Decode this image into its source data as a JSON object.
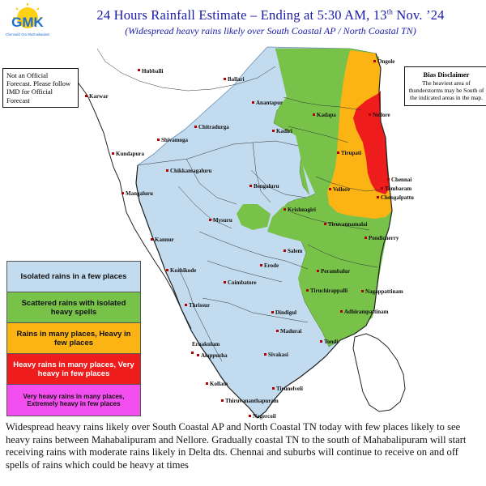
{
  "header": {
    "logo_text": "GMK",
    "logo_sub": "Chennaiiil Oru Mazhaikaalam",
    "title_main": "24 Hours Rainfall Estimate – Ending at 5:30 AM, 13",
    "title_sup": "th",
    "title_end": " Nov. ’24",
    "subtitle": "(Widespread heavy rains likely over South Coastal AP / North Coastal TN)"
  },
  "notes": {
    "left": "Not an Official Forecast. Please follow IMD for Official Forecast",
    "right_heading": "Bias Disclaimer",
    "right_body": "The heaviest area of thunderstorms may be South of the indicated areas in the map."
  },
  "legend": [
    {
      "label": "Isolated rains in a few places",
      "color": "#c3dbef"
    },
    {
      "label": "Scattered rains with isolated heavy spells",
      "color": "#78c24a"
    },
    {
      "label": "Rains in many places, Heavy in few places",
      "color": "#fbb414"
    },
    {
      "label": "Heavy rains in many places, Very heavy in few places",
      "color": "#ee1c1c"
    },
    {
      "label": "Very heavy rains in many places, Extremely heavy in few places",
      "color": "#f34ff0"
    }
  ],
  "cities": {
    "hubballi": "Hubballi",
    "ballari": "Ballari",
    "karwar": "Karwar",
    "anantapur": "Anantapur",
    "kadapa": "Kadapa",
    "ongole": "Ongole",
    "nellore": "Nellore",
    "chitradurga": "Chitradurga",
    "kadiri": "Kadiri",
    "shivamoga": "Shivamoga",
    "kundapura": "Kundapura",
    "tirupati": "Tirupati",
    "chikkamagaluru": "Chikkamagaluru",
    "chennai": "Chennai",
    "tambaram": "Tambaram",
    "mangaluru": "Mangaluru",
    "bengaluru": "Bengaluru",
    "vellore": "Vellore",
    "chengalpattu": "Chengalpattu",
    "krishnagiri": "Krishnagiri",
    "mysuru": "Mysuru",
    "tiruvannamalai": "Tiruvannamalai",
    "pondicherry": "Pondicherry",
    "kannur": "Kannur",
    "salem": "Salem",
    "kozhikode": "Kozhikode",
    "erode": "Erode",
    "perambalur": "Perambalur",
    "coimbatore": "Coimbatore",
    "tiruchirappalli": "Tiruchirappalli",
    "nagappattinam": "Nagappattinam",
    "thrissur": "Thrissur",
    "dindigul": "Dindigul",
    "adhirampattinam": "Adhirampattinam",
    "ernakulam": "Ernakulam",
    "madurai": "Madurai",
    "alappuzha": "Alappuzha",
    "sivakasi": "Sivakasi",
    "tondi": "Tondi",
    "kollam": "Kollam",
    "tirunelveli": "Tirunelveli",
    "thiruvananthapuram": "Thiruvananthapuram",
    "nagercoil": "Nagercoil"
  },
  "caption": "Widespread heavy rains likely over South Coastal AP and North Coastal TN today with few places likely to see heavy rains between Mahabalipuram and Nellore. Gradually coastal TN to the south of Mahabalipuram will start receiving rains with moderate rains likely in Delta dts. Chennai and suburbs will continue to receive on and off spells of rains which could be heavy at times"
}
